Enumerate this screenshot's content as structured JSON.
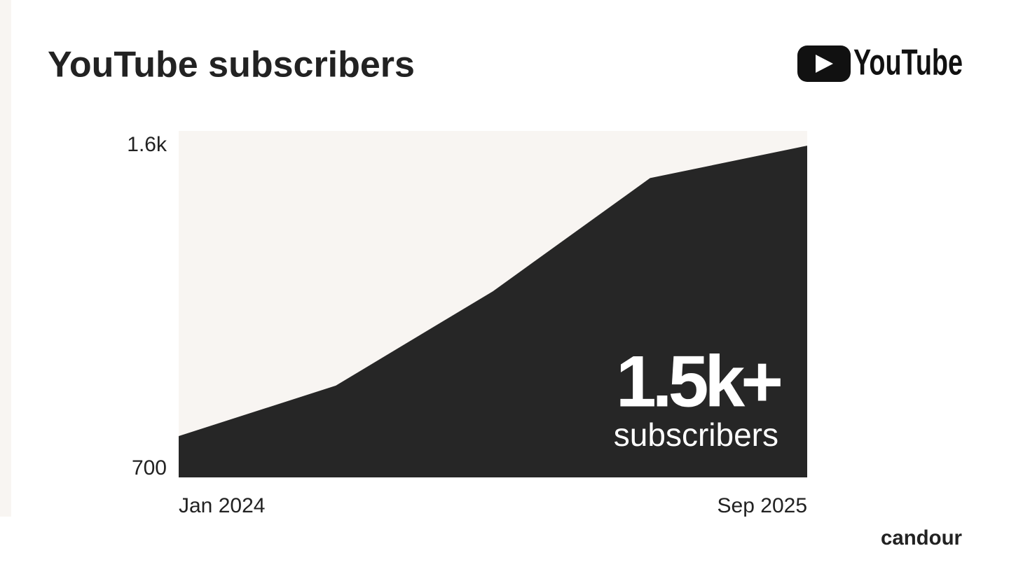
{
  "chart_data": {
    "type": "area",
    "title": "YouTube subscribers",
    "categories": [
      "Jan 2024",
      null,
      null,
      null,
      "Sep 2025"
    ],
    "values": [
      812,
      949,
      1205,
      1512,
      1600
    ],
    "color": "#262626",
    "ylim": [
      700,
      1640
    ],
    "yticks": [
      {
        "value": 1600,
        "label": "1.6k"
      },
      700
    ],
    "grid": false,
    "annotation": {
      "headline": "1.5k+",
      "subline": "subscribers"
    }
  },
  "logo": "YouTube",
  "brand": "candour"
}
